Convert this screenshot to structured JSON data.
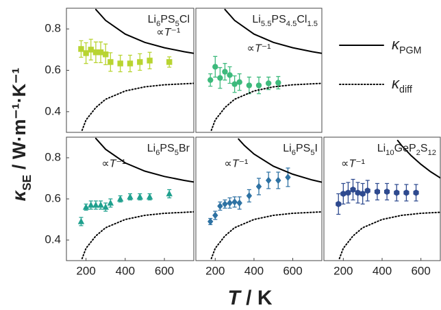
{
  "figure": {
    "ylabel": "κSE / W·m⁻¹·K⁻¹",
    "xlabel": "T / K"
  },
  "chart_data": [
    {
      "type": "scatter",
      "title": "Li6PS5Cl",
      "annotation": "∝T⁻¹",
      "xlim": [
        100,
        750
      ],
      "ylim": [
        0.3,
        0.9
      ],
      "yticks": [
        0.4,
        0.6,
        0.8
      ],
      "series": [
        {
          "color": "#b8d431",
          "marker": "square",
          "x": [
            175,
            200,
            225,
            250,
            275,
            300,
            325,
            375,
            425,
            475,
            525,
            625
          ],
          "values": [
            0.703,
            0.683,
            0.7,
            0.687,
            0.687,
            0.677,
            0.64,
            0.633,
            0.633,
            0.64,
            0.647,
            0.64
          ],
          "errors": [
            0.04,
            0.05,
            0.05,
            0.05,
            0.05,
            0.05,
            0.045,
            0.04,
            0.04,
            0.04,
            0.04,
            0.025
          ]
        },
        {
          "name": "κPGM",
          "style": "solid",
          "color": "#000000",
          "x": [
            250,
            300,
            400,
            500,
            600,
            700,
            750
          ],
          "values": [
            0.894,
            0.841,
            0.775,
            0.735,
            0.709,
            0.69,
            0.682
          ]
        },
        {
          "name": "κdiff",
          "style": "dotted",
          "color": "#000000",
          "x": [
            180,
            200,
            250,
            300,
            400,
            500,
            600,
            750
          ],
          "values": [
            0.31,
            0.36,
            0.42,
            0.46,
            0.5,
            0.52,
            0.53,
            0.537
          ]
        }
      ]
    },
    {
      "type": "scatter",
      "title": "Li5.5PS4.5Cl1.5",
      "annotation": "∝T⁻¹",
      "xlim": [
        100,
        750
      ],
      "ylim": [
        0.3,
        0.9
      ],
      "series": [
        {
          "color": "#3dba7c",
          "marker": "circle",
          "x": [
            175,
            200,
            225,
            250,
            275,
            300,
            325,
            375,
            425,
            475,
            525
          ],
          "values": [
            0.553,
            0.617,
            0.563,
            0.593,
            0.577,
            0.533,
            0.543,
            0.527,
            0.527,
            0.537,
            0.54
          ],
          "errors": [
            0.03,
            0.05,
            0.05,
            0.04,
            0.04,
            0.04,
            0.04,
            0.04,
            0.04,
            0.03,
            0.03
          ]
        },
        {
          "style": "solid",
          "color": "#000000",
          "x": [
            250,
            300,
            400,
            500,
            600,
            700,
            750
          ],
          "values": [
            0.894,
            0.841,
            0.775,
            0.735,
            0.709,
            0.69,
            0.682
          ]
        },
        {
          "style": "dotted",
          "color": "#000000",
          "x": [
            180,
            200,
            250,
            300,
            400,
            500,
            600,
            750
          ],
          "values": [
            0.31,
            0.36,
            0.42,
            0.46,
            0.5,
            0.52,
            0.53,
            0.537
          ]
        }
      ]
    },
    {
      "type": "scatter",
      "title": "Li6PS5Br",
      "annotation": "∝T⁻¹",
      "xlim": [
        100,
        750
      ],
      "ylim": [
        0.3,
        0.9
      ],
      "xticks": [
        200,
        400,
        600
      ],
      "yticks": [
        0.4,
        0.6,
        0.8
      ],
      "series": [
        {
          "color": "#1fa08e",
          "marker": "triangle",
          "x": [
            175,
            200,
            225,
            250,
            275,
            300,
            325,
            375,
            425,
            475,
            525,
            625
          ],
          "values": [
            0.49,
            0.56,
            0.57,
            0.57,
            0.57,
            0.56,
            0.58,
            0.6,
            0.61,
            0.61,
            0.61,
            0.625
          ],
          "errors": [
            0.02,
            0.015,
            0.02,
            0.02,
            0.02,
            0.02,
            0.02,
            0.015,
            0.015,
            0.015,
            0.015,
            0.02
          ]
        },
        {
          "style": "solid",
          "color": "#000000",
          "x": [
            250,
            300,
            400,
            500,
            600,
            700,
            750
          ],
          "values": [
            0.894,
            0.841,
            0.775,
            0.735,
            0.709,
            0.69,
            0.682
          ]
        },
        {
          "style": "dotted",
          "color": "#000000",
          "x": [
            180,
            200,
            250,
            300,
            400,
            500,
            600,
            750
          ],
          "values": [
            0.31,
            0.36,
            0.42,
            0.46,
            0.5,
            0.52,
            0.53,
            0.537
          ]
        }
      ]
    },
    {
      "type": "scatter",
      "title": "Li6PS5I",
      "annotation": "∝T⁻¹",
      "xlim": [
        100,
        750
      ],
      "ylim": [
        0.3,
        0.9
      ],
      "xticks": [
        200,
        400,
        600
      ],
      "series": [
        {
          "color": "#2e72a3",
          "marker": "diamond",
          "x": [
            175,
            200,
            225,
            250,
            275,
            300,
            325,
            375,
            425,
            475,
            525,
            575
          ],
          "values": [
            0.49,
            0.52,
            0.565,
            0.575,
            0.58,
            0.585,
            0.58,
            0.615,
            0.66,
            0.69,
            0.69,
            0.705
          ],
          "errors": [
            0.015,
            0.02,
            0.02,
            0.02,
            0.025,
            0.025,
            0.03,
            0.03,
            0.04,
            0.04,
            0.04,
            0.045
          ]
        },
        {
          "style": "solid",
          "color": "#000000",
          "x": [
            320,
            350,
            400,
            500,
            600,
            700,
            750
          ],
          "values": [
            0.891,
            0.86,
            0.818,
            0.759,
            0.72,
            0.692,
            0.681
          ]
        },
        {
          "style": "dotted",
          "color": "#000000",
          "x": [
            180,
            200,
            250,
            300,
            400,
            500,
            600,
            750
          ],
          "values": [
            0.31,
            0.36,
            0.42,
            0.46,
            0.5,
            0.52,
            0.53,
            0.537
          ]
        }
      ]
    },
    {
      "type": "scatter",
      "title": "Li10GeP2S12",
      "annotation": "∝T⁻¹",
      "xlim": [
        100,
        700
      ],
      "ylim": [
        0.3,
        0.9
      ],
      "xticks": [
        200,
        400,
        600
      ],
      "series": [
        {
          "color": "#2e4a8f",
          "marker": "hexagon",
          "x": [
            175,
            200,
            225,
            250,
            275,
            300,
            325,
            375,
            425,
            475,
            525,
            575
          ],
          "values": [
            0.575,
            0.625,
            0.63,
            0.645,
            0.63,
            0.625,
            0.64,
            0.635,
            0.635,
            0.63,
            0.63,
            0.63
          ],
          "errors": [
            0.05,
            0.05,
            0.05,
            0.05,
            0.05,
            0.05,
            0.05,
            0.04,
            0.04,
            0.04,
            0.04,
            0.04
          ]
        },
        {
          "style": "solid",
          "color": "#000000",
          "x": [
            480,
            500,
            550,
            600,
            650,
            700
          ],
          "values": [
            0.884,
            0.86,
            0.81,
            0.768,
            0.732,
            0.702
          ]
        },
        {
          "style": "dotted",
          "color": "#000000",
          "x": [
            180,
            200,
            250,
            300,
            400,
            500,
            600,
            700
          ],
          "values": [
            0.31,
            0.36,
            0.42,
            0.46,
            0.5,
            0.52,
            0.53,
            0.535
          ]
        }
      ]
    }
  ]
}
